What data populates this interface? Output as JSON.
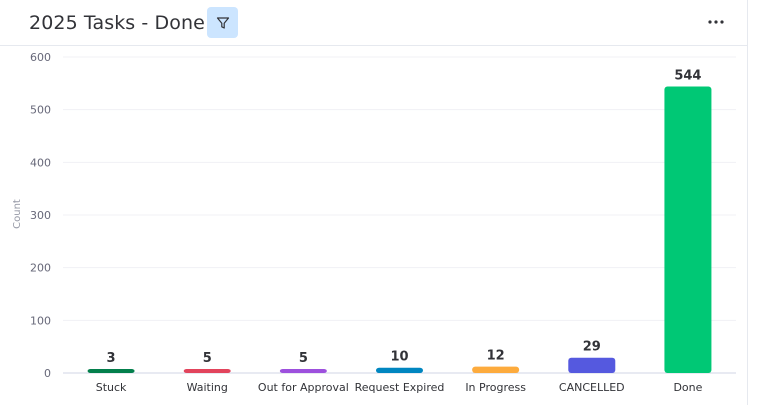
{
  "header": {
    "title": "2025 Tasks - Done",
    "filter_icon": "filter-icon",
    "more_icon": "more-horizontal-icon"
  },
  "chart_data": {
    "type": "bar",
    "categories": [
      "Stuck",
      "Waiting",
      "Out for Approval",
      "Request Expired",
      "In Progress",
      "CANCELLED",
      "Done"
    ],
    "values": [
      3,
      5,
      5,
      10,
      12,
      29,
      544
    ],
    "colors": [
      "#037f4c",
      "#e2445c",
      "#9d50dd",
      "#0086c0",
      "#fdab3d",
      "#5559df",
      "#00c875"
    ],
    "ylabel": "Count",
    "ylim": [
      0,
      600
    ],
    "yticks": [
      0,
      100,
      200,
      300,
      400,
      500,
      600
    ],
    "grid": true,
    "data_labels": true
  }
}
